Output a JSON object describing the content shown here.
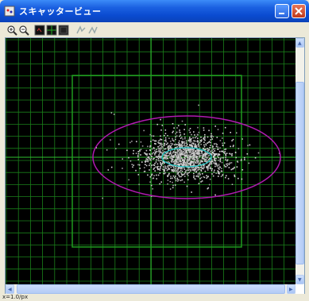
{
  "window": {
    "title": "スキャッタービュー",
    "colors": {
      "titlebar": "#0a4bd0",
      "plot_background": "#000000",
      "grid": "#1f9a1f",
      "ellipse": "#b01ab0",
      "inner_ellipse": "#19c6c6",
      "points": "#c8c8c8"
    }
  },
  "toolbar": {
    "tools": [
      {
        "name": "zoom-in-icon"
      },
      {
        "name": "zoom-out-icon"
      },
      {
        "name": "view-mode-1-icon"
      },
      {
        "name": "view-mode-2-icon"
      },
      {
        "name": "view-mode-3-icon"
      },
      {
        "name": "tool-a-icon"
      },
      {
        "name": "tool-b-icon"
      }
    ]
  },
  "status": {
    "text": "x=1.0/px"
  }
}
